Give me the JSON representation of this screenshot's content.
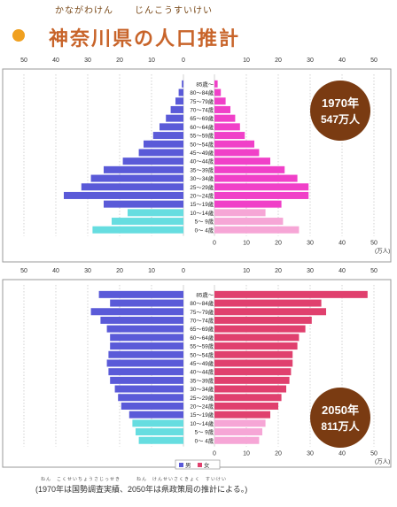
{
  "header": {
    "title": "神奈川県の人口推計",
    "ruby_left": "かながわけん",
    "ruby_right": "じんこうすいけい"
  },
  "colors": {
    "title": "#c8642a",
    "bullet": "#f0a020",
    "male_adult": "#5a5ad8",
    "male_child": "#66dde0",
    "female_1970": "#f040c8",
    "female_2050": "#e0406e",
    "female_child": "#f6a6d6",
    "badge": "#7a3b12"
  },
  "footnote": {
    "text": "(1970年は国勢調査実績、2050年は県政策局の推計による。)",
    "ruby": "ねん　こくせいちょうさじっせき　　　ねん　けんせいさくきょく　すいけい"
  },
  "chart_data": [
    {
      "type": "bar",
      "subtype": "population-pyramid",
      "badge": {
        "year": "1970年",
        "population": "547万人"
      },
      "unit": "(万人)",
      "axis_ticks": [
        "50",
        "40",
        "30",
        "20",
        "10",
        "0",
        "10",
        "20",
        "30",
        "40",
        "50"
      ],
      "xlim": [
        0,
        50
      ],
      "grid": true,
      "categories": [
        "85歳～",
        "80～84歳",
        "75～79歳",
        "70～74歳",
        "65～69歳",
        "60～64歳",
        "55～59歳",
        "50～54歳",
        "45～49歳",
        "40～44歳",
        "35～39歳",
        "30～34歳",
        "25～29歳",
        "20～24歳",
        "15～19歳",
        "10～14歳",
        "5～ 9歳",
        "0～ 4歳"
      ],
      "male": [
        0.5,
        1.5,
        2.5,
        4,
        5.5,
        7.5,
        9.5,
        12.5,
        14,
        19,
        25,
        29,
        32,
        37.5,
        25,
        17.5,
        22.5,
        28.5
      ],
      "female": [
        1,
        2,
        3.5,
        5,
        6.5,
        8,
        9.5,
        12.5,
        14,
        17.5,
        22,
        26,
        29.5,
        29.5,
        21,
        16,
        21.5,
        26.5
      ]
    },
    {
      "type": "bar",
      "subtype": "population-pyramid",
      "badge": {
        "year": "2050年",
        "population": "811万人"
      },
      "unit": "(万人)",
      "axis_ticks": [
        "50",
        "40",
        "30",
        "20",
        "10",
        "0",
        "10",
        "20",
        "30",
        "40",
        "50"
      ],
      "xlim": [
        0,
        50
      ],
      "grid": true,
      "legend": {
        "male": "男",
        "female": "女",
        "placement": "bottom-center"
      },
      "categories": [
        "85歳～",
        "80～84歳",
        "75～79歳",
        "70～74歳",
        "65～69歳",
        "60～64歳",
        "55～59歳",
        "50～54歳",
        "45～49歳",
        "40～44歳",
        "35～39歳",
        "30～34歳",
        "25～29歳",
        "20～24歳",
        "15～19歳",
        "10～14歳",
        "5～ 9歳",
        "0～ 4歳"
      ],
      "male": [
        26.5,
        23,
        29,
        26,
        24,
        23,
        23,
        23.5,
        24,
        23.5,
        23,
        21.5,
        20.5,
        19.5,
        17,
        16,
        15,
        14
      ],
      "female": [
        48,
        33.5,
        35,
        30.5,
        28.5,
        26.5,
        26,
        24.5,
        24.5,
        24,
        23.5,
        22.5,
        21,
        20,
        17.5,
        16,
        15,
        14
      ]
    }
  ]
}
